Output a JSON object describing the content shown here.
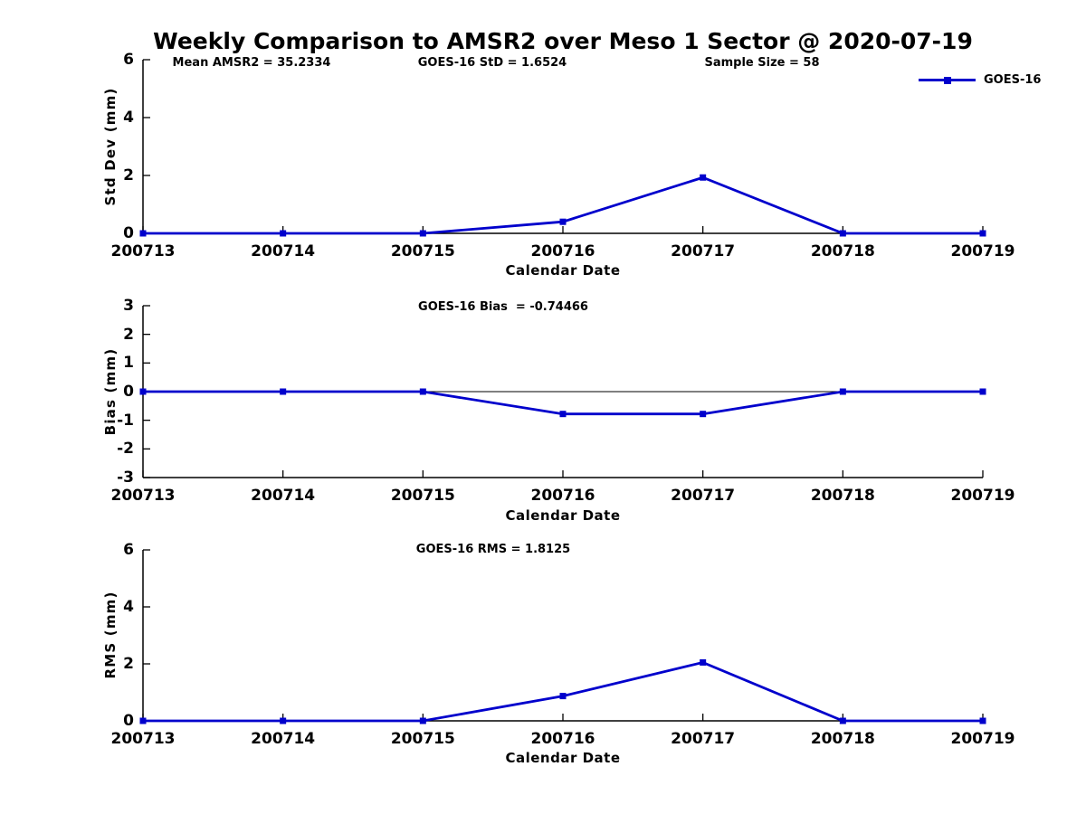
{
  "title": "Weekly Comparison to AMSR2 over Meso 1 Sector @ 2020-07-19",
  "colors": {
    "series": "#0000cc",
    "axis": "#000000"
  },
  "legend": {
    "label": "GOES-16",
    "position": "top-right"
  },
  "chart_data": [
    {
      "type": "line",
      "panel": "std-dev",
      "annotations": [
        "Mean AMSR2 = 35.2334",
        "GOES-16 StD = 1.6524",
        "Sample Size = 58"
      ],
      "x": [
        "200713",
        "200714",
        "200715",
        "200716",
        "200717",
        "200718",
        "200719"
      ],
      "series": [
        {
          "name": "GOES-16",
          "values": [
            0,
            0,
            0,
            0.4,
            1.93,
            0,
            0
          ],
          "marker": "square",
          "color": "#0000cc"
        }
      ],
      "xlabel": "Calendar Date",
      "ylabel": "Std Dev (mm)",
      "ylim": [
        0,
        6
      ],
      "yticks": [
        0,
        2,
        4,
        6
      ],
      "grid": false,
      "zero_line": false
    },
    {
      "type": "line",
      "panel": "bias",
      "annotations": [
        "GOES-16 Bias  = -0.74466"
      ],
      "x": [
        "200713",
        "200714",
        "200715",
        "200716",
        "200717",
        "200718",
        "200719"
      ],
      "series": [
        {
          "name": "GOES-16",
          "values": [
            0,
            0,
            0,
            -0.78,
            -0.78,
            0,
            0
          ],
          "marker": "square",
          "color": "#0000cc"
        }
      ],
      "xlabel": "Calendar Date",
      "ylabel": "Bias (mm)",
      "ylim": [
        -3,
        3
      ],
      "yticks": [
        -3,
        -2,
        -1,
        0,
        1,
        2,
        3
      ],
      "grid": false,
      "zero_line": true
    },
    {
      "type": "line",
      "panel": "rms",
      "annotations": [
        "GOES-16 RMS = 1.8125"
      ],
      "x": [
        "200713",
        "200714",
        "200715",
        "200716",
        "200717",
        "200718",
        "200719"
      ],
      "series": [
        {
          "name": "GOES-16",
          "values": [
            0,
            0,
            0,
            0.87,
            2.05,
            0,
            0
          ],
          "marker": "square",
          "color": "#0000cc"
        }
      ],
      "xlabel": "Calendar Date",
      "ylabel": "RMS (mm)",
      "ylim": [
        0,
        6
      ],
      "yticks": [
        0,
        2,
        4,
        6
      ],
      "grid": false,
      "zero_line": false
    }
  ]
}
